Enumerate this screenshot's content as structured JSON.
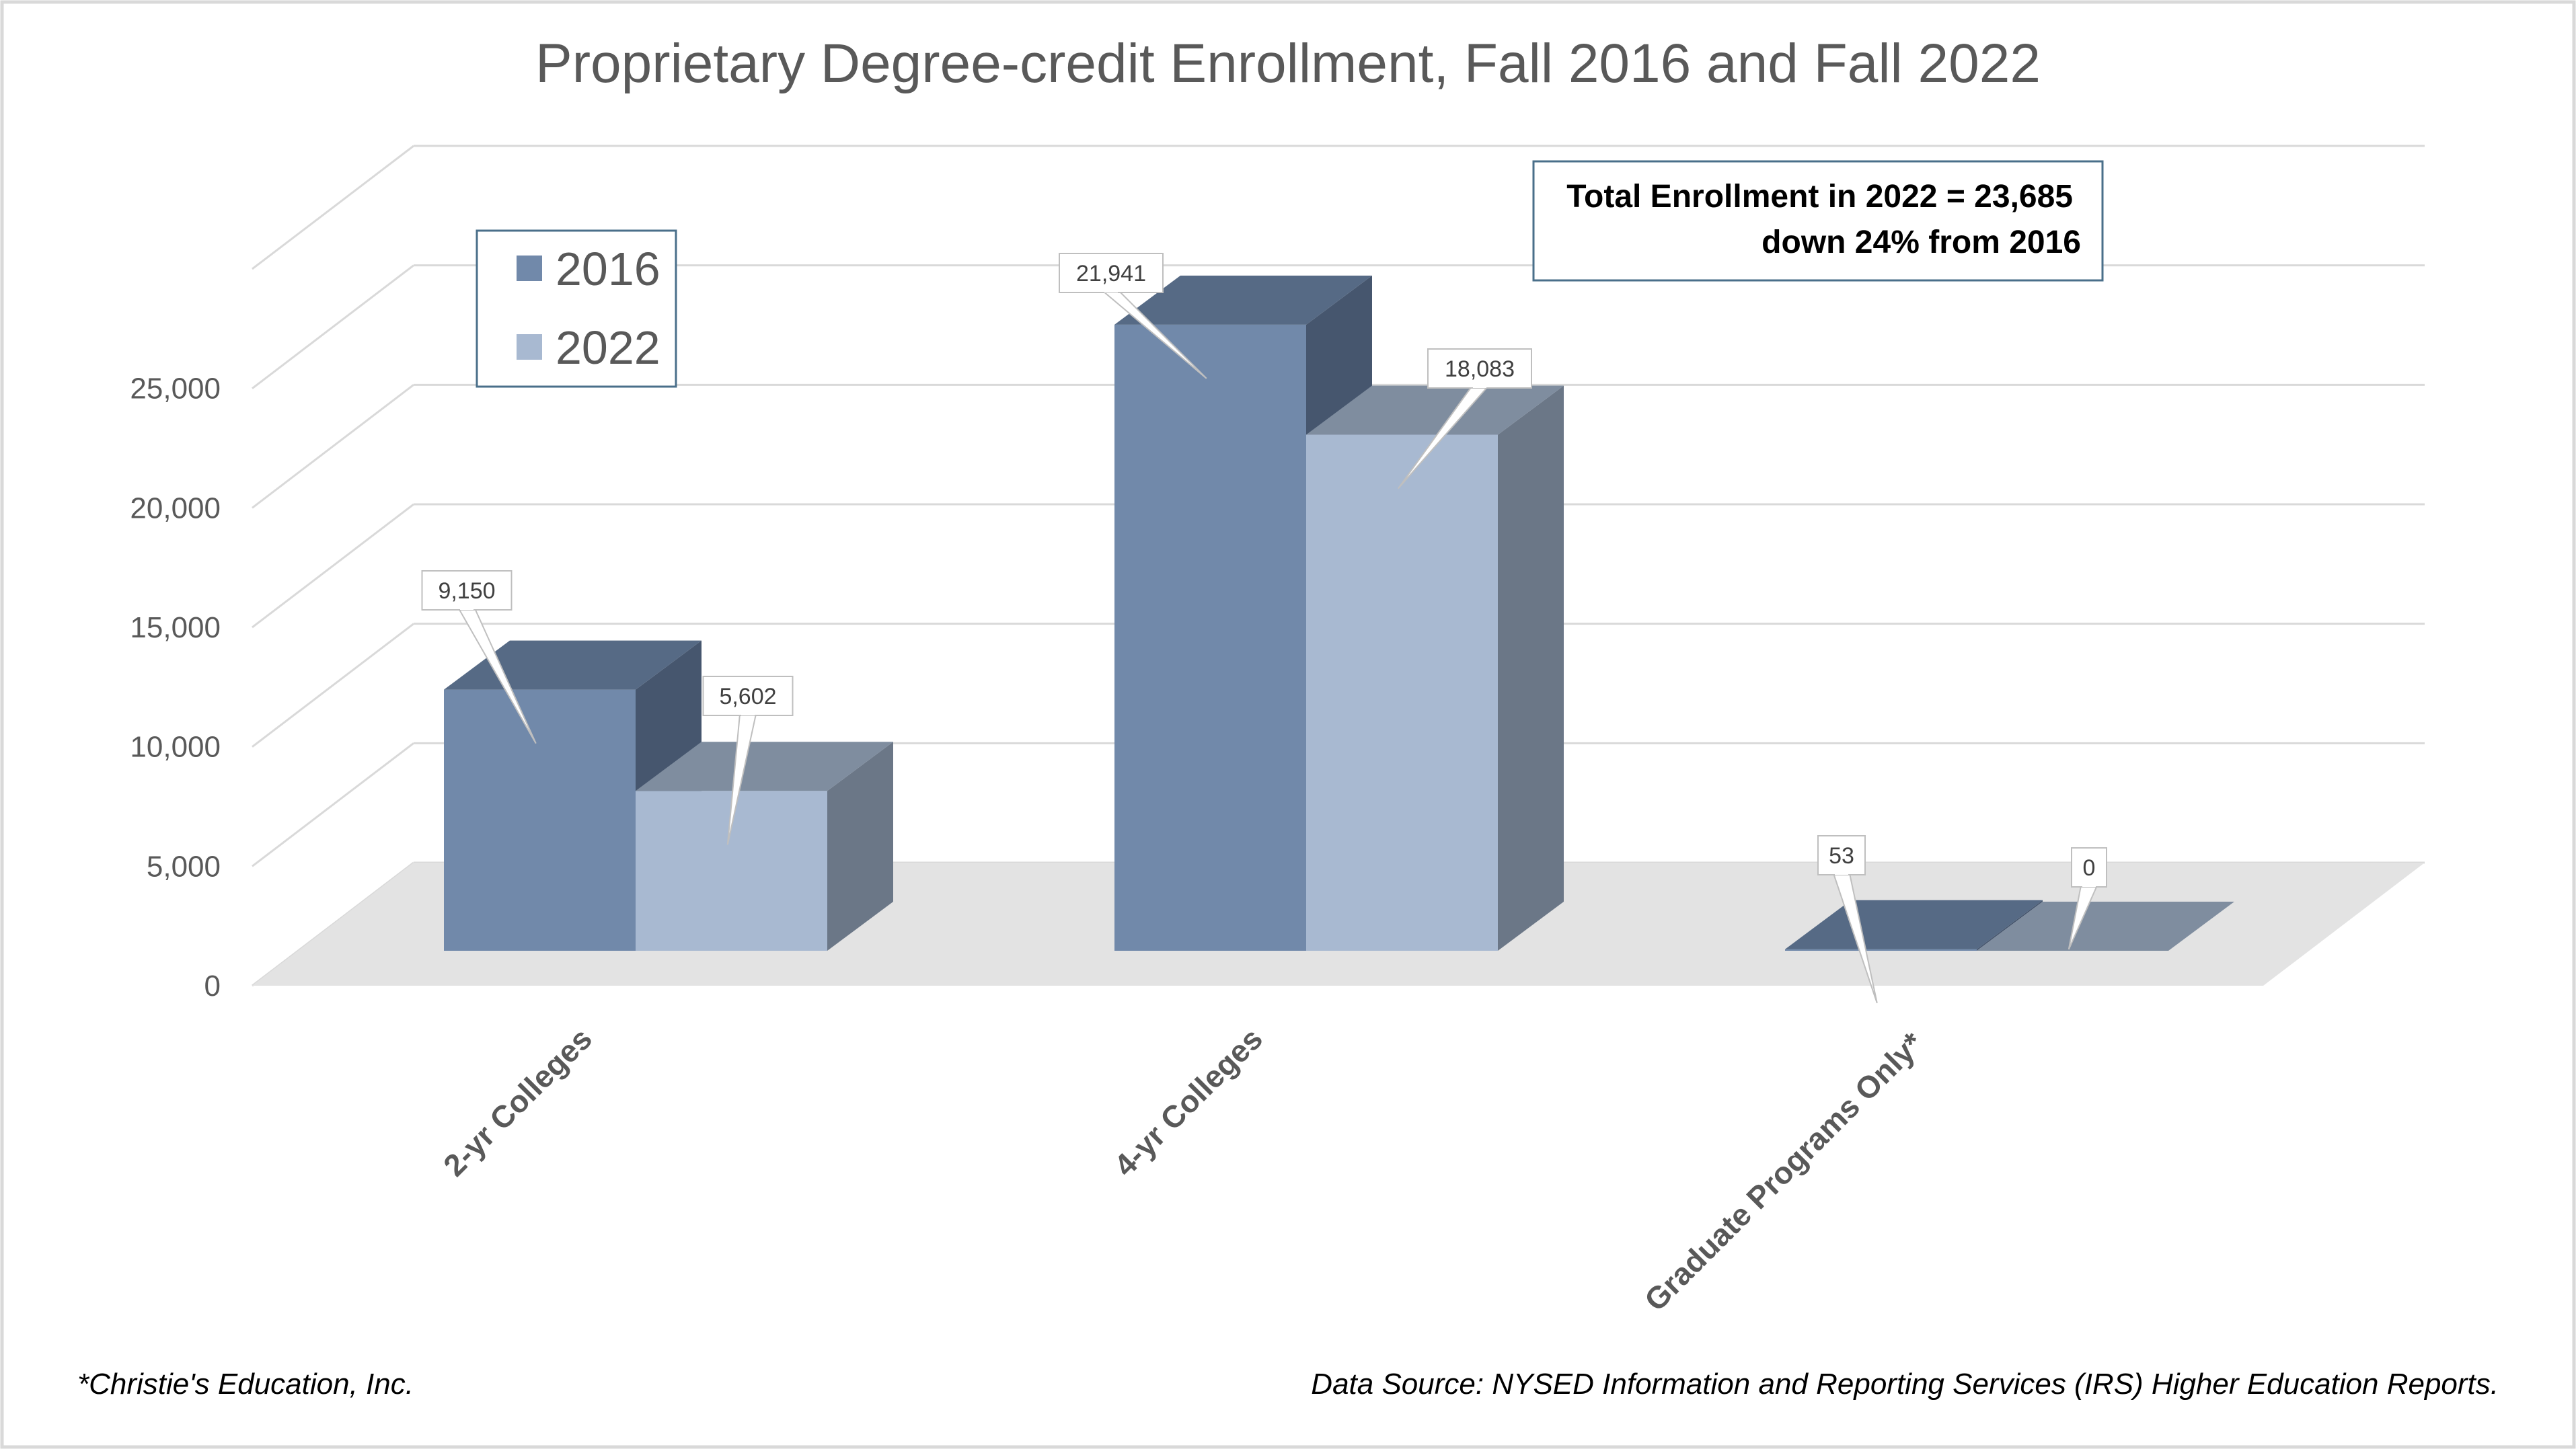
{
  "chart_data": {
    "type": "bar",
    "title": "Proprietary Degree-credit Enrollment, Fall 2016 and Fall 2022",
    "categories": [
      "2-yr Colleges",
      "4-yr Colleges",
      "Graduate Programs Only*"
    ],
    "series": [
      {
        "name": "2016",
        "values": [
          9150,
          21941,
          53
        ],
        "labels": [
          "9,150",
          "21,941",
          "53"
        ],
        "colors": {
          "front": "#7189aa",
          "top": "#566a85",
          "side": "#46566e"
        }
      },
      {
        "name": "2022",
        "values": [
          5602,
          18083,
          0
        ],
        "labels": [
          "5,602",
          "18,083",
          "0"
        ],
        "colors": {
          "front": "#a8b9d1",
          "top": "#7f8d9f",
          "side": "#6b7787"
        }
      }
    ],
    "yticks": [
      "0",
      "5,000",
      "10,000",
      "15,000",
      "20,000",
      "25,000"
    ],
    "ylim": [
      0,
      30000
    ],
    "legend_position": "top-left",
    "grid": true,
    "annotation": {
      "line1": "Total Enrollment in 2022 = 23,685",
      "line2": "down 24% from 2016"
    },
    "footnote": "*Christie's Education, Inc.",
    "source": "Data Source: NYSED Information and Reporting Services (IRS) Higher Education Reports."
  }
}
